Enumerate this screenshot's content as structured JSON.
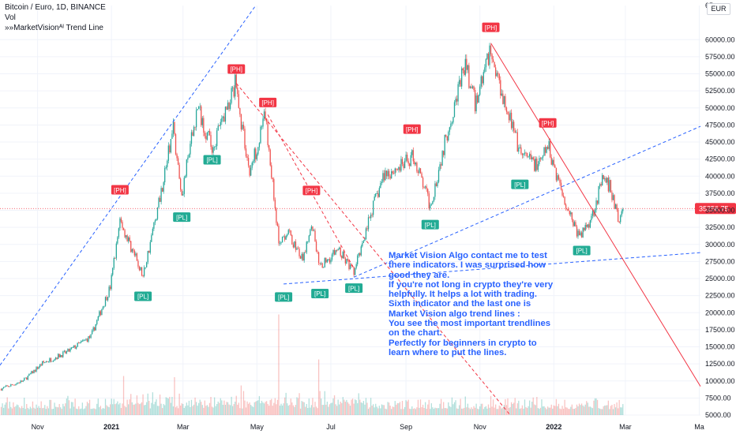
{
  "header": {
    "symbol": "Bitcoin / Euro, 1D, BINANCE",
    "volume_label": "Vol",
    "indicator": "»»MarketVisionᴬᴵ Trend Line"
  },
  "currency_button": "EUR",
  "annotation": "Market Vision Algo contact me to test\nthere indicators.  I was surprised how\ngood they are.\nIf you're not long in crypto they're very\nhelpfully.  It helps a lot with trading.\nSixth indicator and the last one is\nMarket Vision algo trend lines :\nYou see the most important trendlines\non the chart.\nPerfectly for beginners in crypto to\nlearn where to put the lines.",
  "colors": {
    "up": "#26a69a",
    "down": "#ef5350",
    "trend_up": "#2962ff",
    "trend_down": "#f23645",
    "pivot_high": "#f23645",
    "pivot_low": "#22ab94",
    "price_line": "#f23645"
  },
  "chart_data": {
    "type": "candlestick",
    "ylim": [
      5000,
      65000
    ],
    "y_ticks": [
      5000,
      7500,
      10000,
      12500,
      15000,
      17500,
      20000,
      22500,
      25000,
      27500,
      30000,
      32500,
      35000,
      37500,
      40000,
      42500,
      45000,
      47500,
      50000,
      52500,
      55000,
      57500,
      60000
    ],
    "y_tick_top_label": "65",
    "x_ticks": [
      {
        "date": "2020-11-01",
        "label": "Nov"
      },
      {
        "date": "2021-01-01",
        "label": "2021"
      },
      {
        "date": "2021-03-01",
        "label": "Mar"
      },
      {
        "date": "2021-05-01",
        "label": "May"
      },
      {
        "date": "2021-07-01",
        "label": "Jul"
      },
      {
        "date": "2021-09-01",
        "label": "Sep"
      },
      {
        "date": "2021-11-01",
        "label": "Nov"
      },
      {
        "date": "2022-01-01",
        "label": "2022"
      },
      {
        "date": "2022-03-01",
        "label": "Mar"
      },
      {
        "date": "2022-05-01",
        "label": "Ma"
      }
    ],
    "x_range": [
      "2020-10-01",
      "2022-05-02"
    ],
    "last_price": "35256.75",
    "price_path": [
      {
        "date": "2020-10-01",
        "close": 8800
      },
      {
        "date": "2020-10-20",
        "close": 10000
      },
      {
        "date": "2020-11-05",
        "close": 12600
      },
      {
        "date": "2020-11-25",
        "close": 14200
      },
      {
        "date": "2020-12-15",
        "close": 16500
      },
      {
        "date": "2020-12-31",
        "close": 23800
      },
      {
        "date": "2021-01-08",
        "close": 33600
      },
      {
        "date": "2021-01-27",
        "close": 25300
      },
      {
        "date": "2021-02-10",
        "close": 37000
      },
      {
        "date": "2021-02-21",
        "close": 47000
      },
      {
        "date": "2021-02-28",
        "close": 37400
      },
      {
        "date": "2021-03-13",
        "close": 50200
      },
      {
        "date": "2021-03-25",
        "close": 44000
      },
      {
        "date": "2021-04-13",
        "close": 53500
      },
      {
        "date": "2021-04-25",
        "close": 40500
      },
      {
        "date": "2021-05-08",
        "close": 48800
      },
      {
        "date": "2021-05-19",
        "close": 30500
      },
      {
        "date": "2021-05-26",
        "close": 32000
      },
      {
        "date": "2021-06-08",
        "close": 27500
      },
      {
        "date": "2021-06-15",
        "close": 33500
      },
      {
        "date": "2021-06-22",
        "close": 26800
      },
      {
        "date": "2021-07-07",
        "close": 29300
      },
      {
        "date": "2021-07-20",
        "close": 25800
      },
      {
        "date": "2021-08-01",
        "close": 33500
      },
      {
        "date": "2021-08-14",
        "close": 40300
      },
      {
        "date": "2021-08-29",
        "close": 41500
      },
      {
        "date": "2021-09-07",
        "close": 43000
      },
      {
        "date": "2021-09-21",
        "close": 35600
      },
      {
        "date": "2021-10-06",
        "close": 47200
      },
      {
        "date": "2021-10-20",
        "close": 56400
      },
      {
        "date": "2021-10-28",
        "close": 50500
      },
      {
        "date": "2021-11-09",
        "close": 58400
      },
      {
        "date": "2021-11-26",
        "close": 48500
      },
      {
        "date": "2021-12-04",
        "close": 43200
      },
      {
        "date": "2021-12-20",
        "close": 41500
      },
      {
        "date": "2021-12-27",
        "close": 44500
      },
      {
        "date": "2022-01-10",
        "close": 36500
      },
      {
        "date": "2022-01-22",
        "close": 31000
      },
      {
        "date": "2022-02-01",
        "close": 34000
      },
      {
        "date": "2022-02-10",
        "close": 39300
      },
      {
        "date": "2022-02-16",
        "close": 38500
      },
      {
        "date": "2022-02-24",
        "close": 33200
      },
      {
        "date": "2022-02-27",
        "close": 35256.75
      }
    ],
    "volume_spikes": [
      {
        "date": "2021-01-11",
        "rel": 0.33
      },
      {
        "date": "2021-02-22",
        "rel": 0.32
      },
      {
        "date": "2021-04-18",
        "rel": 0.25
      },
      {
        "date": "2021-05-19",
        "rel": 0.85
      },
      {
        "date": "2021-06-21",
        "rel": 0.47
      }
    ],
    "pivots": [
      {
        "label": "[PH]",
        "date": "2021-01-08",
        "price": 38000,
        "side": "high"
      },
      {
        "label": "[PH]",
        "date": "2021-04-14",
        "price": 55700,
        "side": "high"
      },
      {
        "label": "[PH]",
        "date": "2021-05-10",
        "price": 50800,
        "side": "high"
      },
      {
        "label": "[PH]",
        "date": "2021-06-15",
        "price": 37900,
        "side": "high"
      },
      {
        "label": "[PH]",
        "date": "2021-09-06",
        "price": 46900,
        "side": "high"
      },
      {
        "label": "[PH]",
        "date": "2021-11-10",
        "price": 61800,
        "side": "high"
      },
      {
        "label": "[PH]",
        "date": "2021-12-27",
        "price": 47800,
        "side": "high"
      },
      {
        "label": "[PL]",
        "date": "2021-01-27",
        "price": 22400,
        "side": "low"
      },
      {
        "label": "[PL]",
        "date": "2021-02-28",
        "price": 34000,
        "side": "low"
      },
      {
        "label": "[PL]",
        "date": "2021-03-25",
        "price": 42400,
        "side": "low"
      },
      {
        "label": "[PL]",
        "date": "2021-05-23",
        "price": 22300,
        "side": "low"
      },
      {
        "label": "[PL]",
        "date": "2021-06-22",
        "price": 22800,
        "side": "low"
      },
      {
        "label": "[PL]",
        "date": "2021-07-20",
        "price": 23600,
        "side": "low"
      },
      {
        "label": "[PL]",
        "date": "2021-09-21",
        "price": 32900,
        "side": "low"
      },
      {
        "label": "[PL]",
        "date": "2021-12-04",
        "price": 38800,
        "side": "low"
      },
      {
        "label": "[PL]",
        "date": "2022-01-24",
        "price": 29100,
        "side": "low"
      }
    ],
    "trendlines": [
      {
        "style": "dashed",
        "color": "up",
        "from": {
          "date": "2020-10-01",
          "price": 12300
        },
        "to": {
          "date": "2021-04-30",
          "price": 65000
        }
      },
      {
        "style": "dashed",
        "color": "up",
        "from": {
          "date": "2021-07-20",
          "price": 25200
        },
        "to": {
          "date": "2022-05-02",
          "price": 47300
        }
      },
      {
        "style": "dashed",
        "color": "up",
        "from": {
          "date": "2021-05-23",
          "price": 24200
        },
        "to": {
          "date": "2022-05-02",
          "price": 28800
        }
      },
      {
        "style": "dashed",
        "color": "down",
        "from": {
          "date": "2021-04-14",
          "price": 53600
        },
        "to": {
          "date": "2021-11-26",
          "price": 5000
        }
      },
      {
        "style": "dashed",
        "color": "down",
        "from": {
          "date": "2021-05-10",
          "price": 49000
        },
        "to": {
          "date": "2021-07-20",
          "price": 26500
        }
      },
      {
        "style": "solid",
        "color": "down",
        "from": {
          "date": "2021-11-10",
          "price": 59500
        },
        "to": {
          "date": "2022-05-02",
          "price": 9200
        }
      }
    ]
  }
}
